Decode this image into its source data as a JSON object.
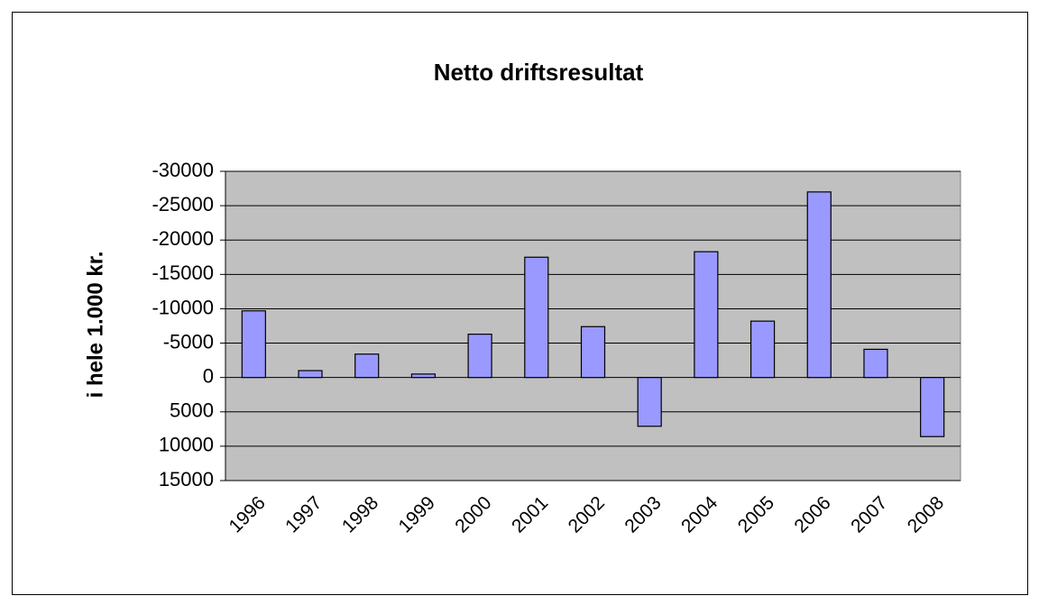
{
  "chart_data": {
    "type": "bar",
    "title": "Netto driftsresultat",
    "y_label": "i hele 1.000 kr.",
    "categories": [
      "1996",
      "1997",
      "1998",
      "1999",
      "2000",
      "2001",
      "2002",
      "2003",
      "2004",
      "2005",
      "2006",
      "2007",
      "2008"
    ],
    "values": [
      -9700,
      -1000,
      -3400,
      -500,
      -6300,
      -17500,
      -7400,
      7100,
      -18300,
      -8200,
      -27000,
      -4100,
      8600
    ],
    "color": "#9999ff",
    "ylim": [
      -30000,
      15000
    ],
    "y_reversed": true,
    "yticks": [
      -30000,
      -25000,
      -20000,
      -15000,
      -10000,
      -5000,
      0,
      5000,
      10000,
      15000
    ],
    "grid": true
  }
}
